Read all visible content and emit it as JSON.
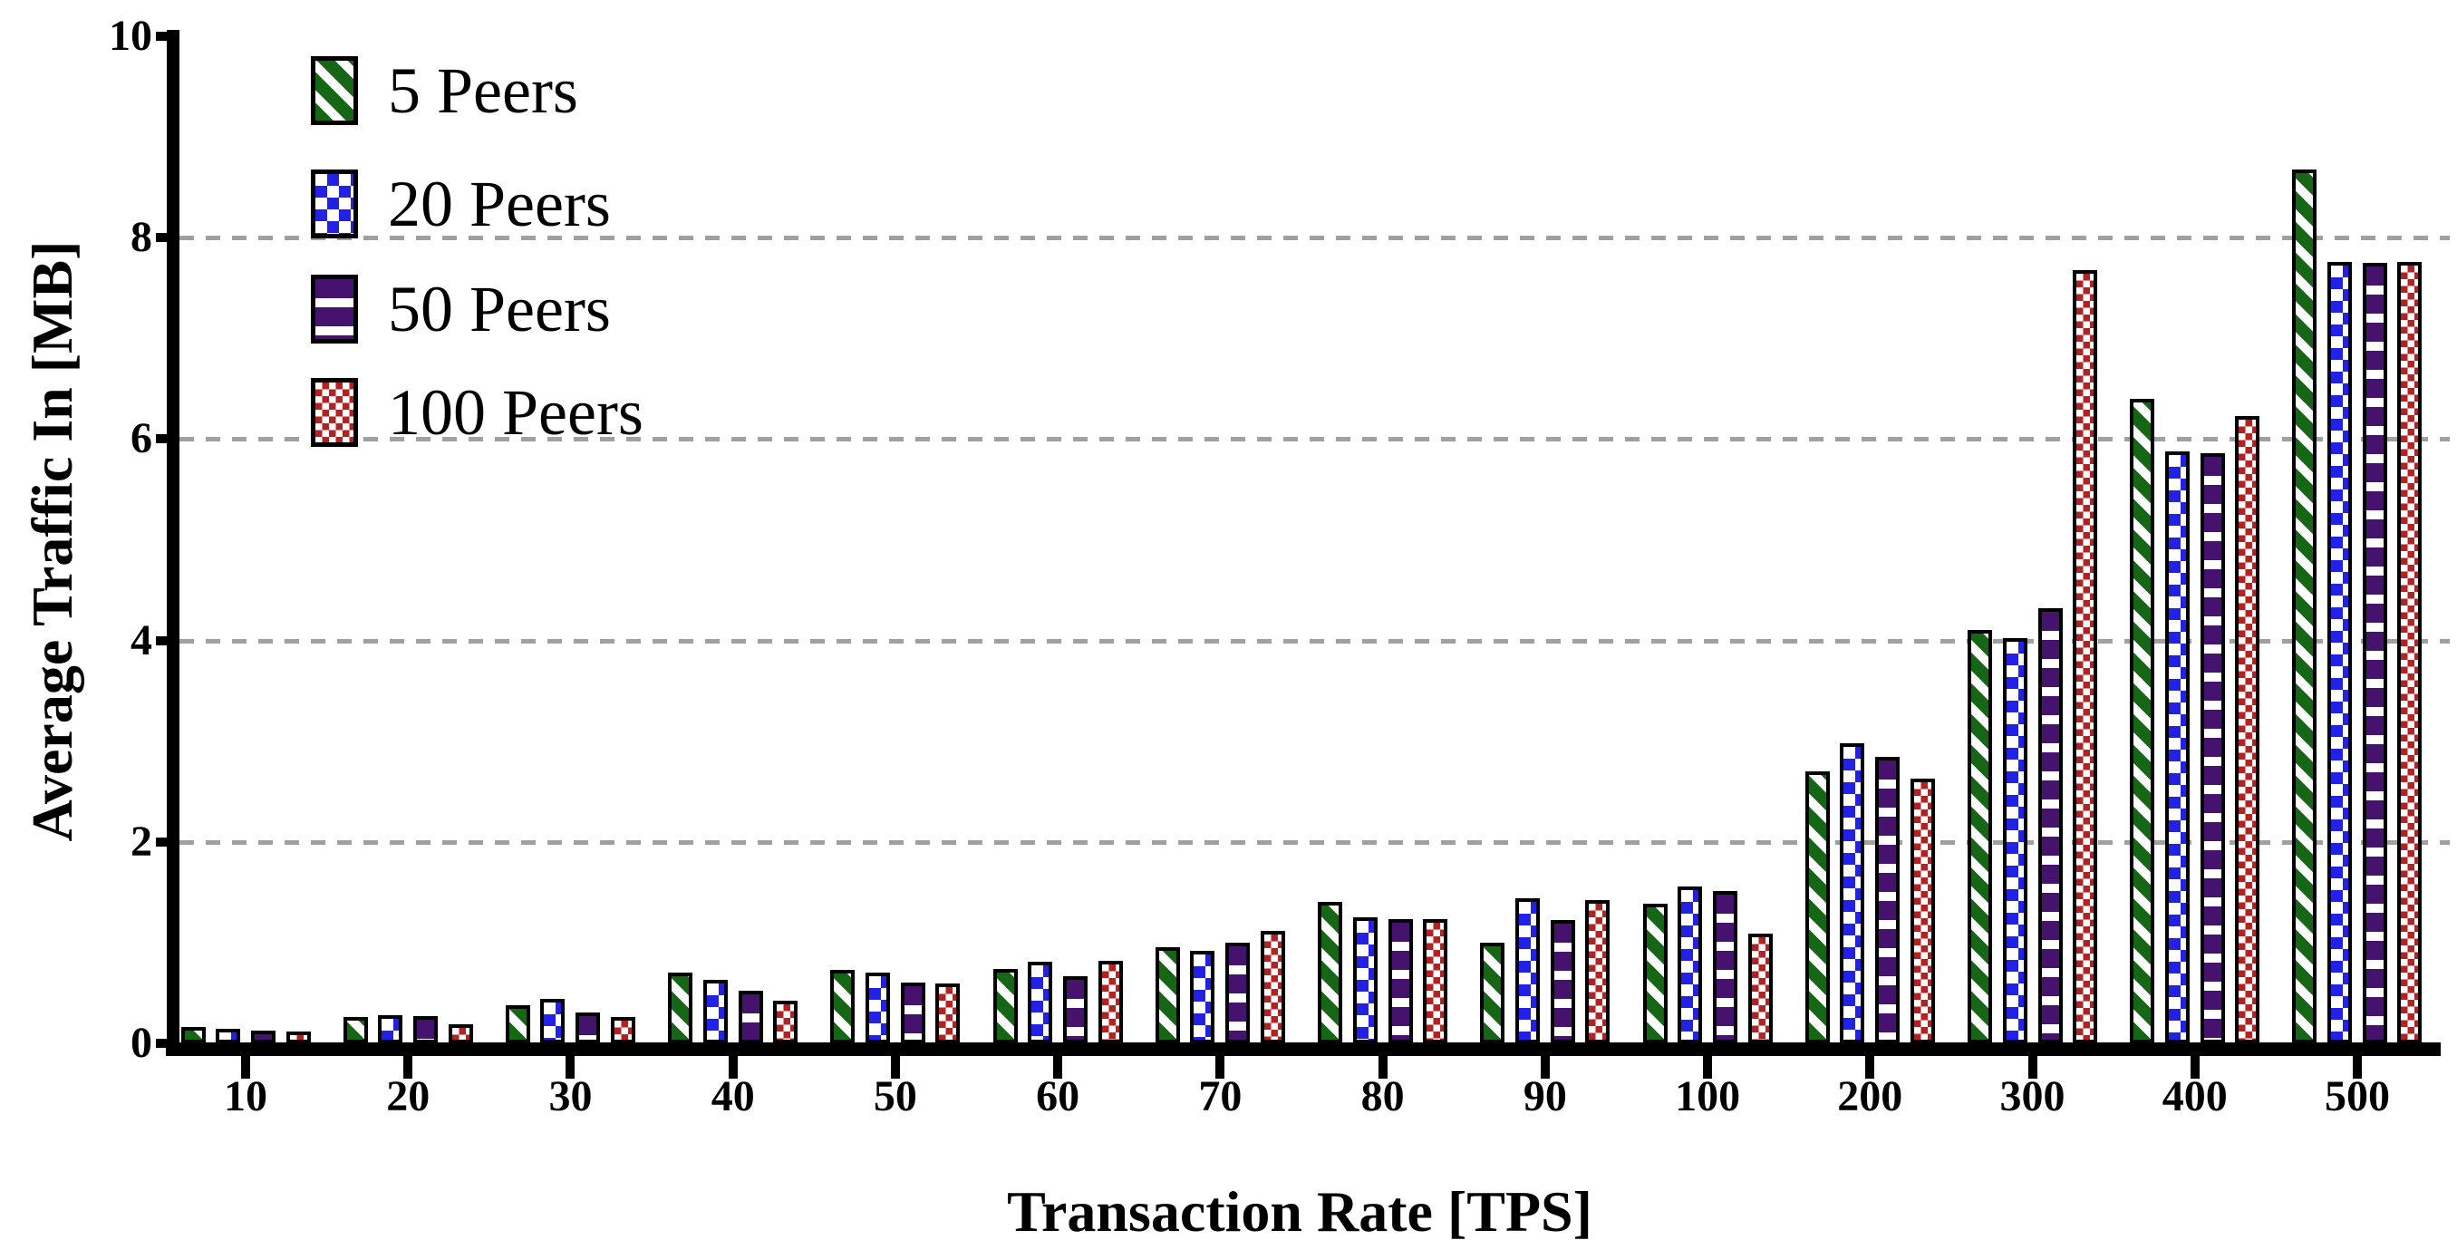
{
  "chart_data": {
    "type": "bar",
    "title": "",
    "xlabel": "Transaction Rate [TPS]",
    "ylabel": "Average Traffic In [MB]",
    "categories": [
      "10",
      "20",
      "30",
      "40",
      "50",
      "60",
      "70",
      "80",
      "90",
      "100",
      "200",
      "300",
      "400",
      "500"
    ],
    "series": [
      {
        "name": "5 Peers",
        "color": "#156615",
        "pattern": "diagonal-stripes",
        "values": [
          0.16,
          0.26,
          0.38,
          0.7,
          0.73,
          0.74,
          0.95,
          1.4,
          1.0,
          1.39,
          2.7,
          4.1,
          6.4,
          8.68
        ]
      },
      {
        "name": "20 Peers",
        "color": "#2222e6",
        "pattern": "checkerboard",
        "values": [
          0.14,
          0.28,
          0.44,
          0.63,
          0.7,
          0.81,
          0.92,
          1.25,
          1.44,
          1.56,
          2.98,
          4.02,
          5.88,
          7.76
        ]
      },
      {
        "name": "50 Peers",
        "color": "#45126e",
        "pattern": "horizontal-stripes",
        "values": [
          0.13,
          0.27,
          0.31,
          0.52,
          0.6,
          0.67,
          1.0,
          1.23,
          1.22,
          1.51,
          2.84,
          4.32,
          5.86,
          7.75
        ]
      },
      {
        "name": "100 Peers",
        "color": "#b32222",
        "pattern": "fine-checkerboard",
        "values": [
          0.12,
          0.19,
          0.26,
          0.42,
          0.59,
          0.82,
          1.12,
          1.23,
          1.42,
          1.09,
          2.63,
          7.68,
          6.23,
          7.76
        ]
      }
    ],
    "ylim": [
      0,
      10
    ],
    "yticks": [
      0,
      2,
      4,
      6,
      8,
      10
    ],
    "grid": "horizontal-dashed",
    "gridline_color": "#a0a0a0",
    "legend_position": "top-left"
  }
}
